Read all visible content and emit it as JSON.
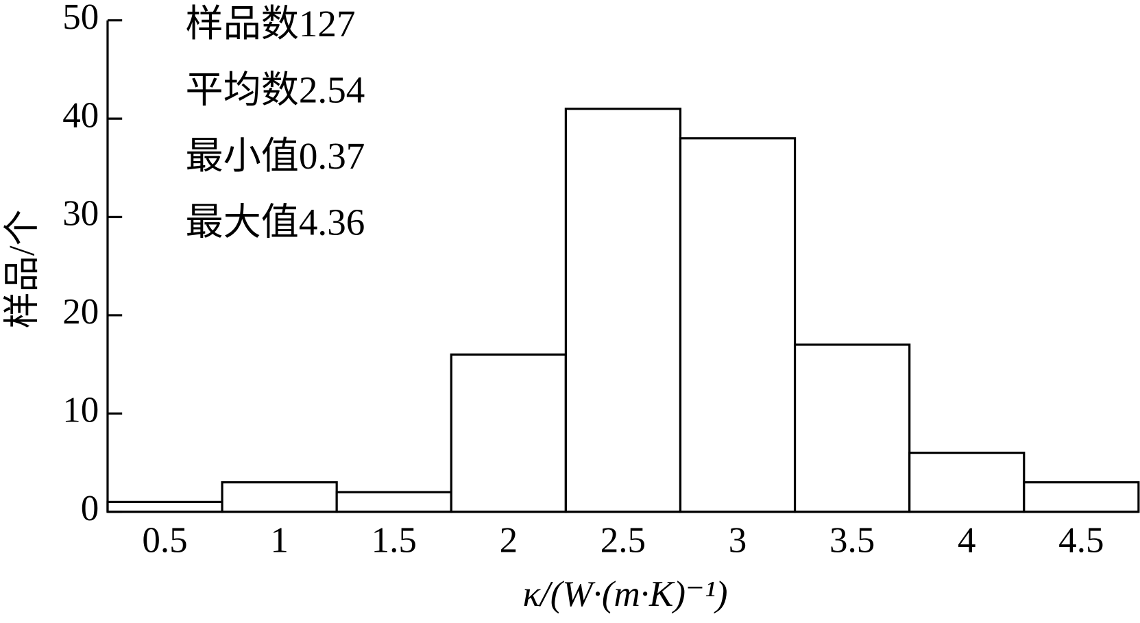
{
  "chart_data": {
    "type": "histogram",
    "ylabel": "样品/个",
    "xlabel": "κ/(W·(m·K)⁻¹)",
    "annotations": [
      "样品数127",
      "平均数2.54",
      "最小值0.37",
      "最大值4.36"
    ],
    "bins": [
      0.25,
      0.75,
      1.25,
      1.75,
      2.25,
      2.75,
      3.25,
      3.75,
      4.25,
      4.75
    ],
    "counts": [
      1,
      3,
      2,
      16,
      41,
      38,
      17,
      6,
      3
    ],
    "color": "#ffffff",
    "xlim": [
      0.25,
      4.75
    ],
    "xticks": [
      0.5,
      1,
      1.5,
      2,
      2.5,
      3,
      3.5,
      4,
      4.5
    ],
    "ylim": [
      0,
      50
    ],
    "yticks": [
      0,
      10,
      20,
      30,
      40,
      50
    ]
  }
}
